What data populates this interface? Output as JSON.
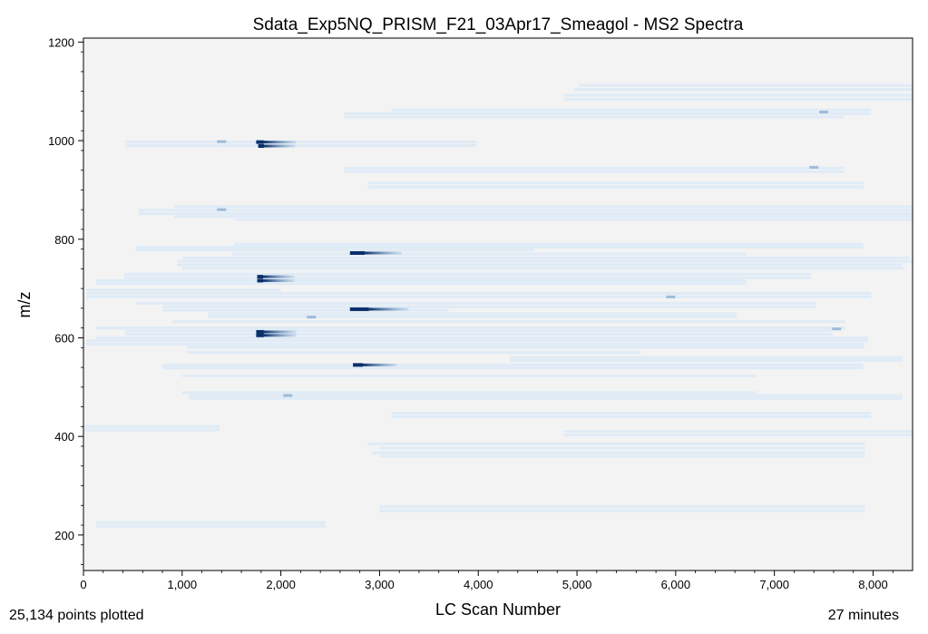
{
  "chart_data": {
    "type": "scatter",
    "title": "Sdata_Exp5NQ_PRISM_F21_03Apr17_Smeagol - MS2 Spectra",
    "xlabel": "LC Scan Number",
    "ylabel": "m/z",
    "xlim": [
      0,
      8400
    ],
    "ylim": [
      128,
      1208
    ],
    "x_ticks": [
      0,
      1000,
      2000,
      3000,
      4000,
      5000,
      6000,
      7000,
      8000
    ],
    "x_tick_labels": [
      "0",
      "1,000",
      "2,000",
      "3,000",
      "4,000",
      "5,000",
      "6,000",
      "7,000",
      "8,000"
    ],
    "y_ticks": [
      200,
      400,
      600,
      800,
      1000,
      1200
    ],
    "y_tick_labels": [
      "200",
      "400",
      "600",
      "800",
      "1000",
      "1200"
    ],
    "grid": false,
    "background": "#f3f3f3",
    "colormap_low": "#d8e8f7",
    "colormap_high": "#08306b",
    "faint_bands": [
      {
        "mz": 1112,
        "x": [
          5020,
          8400
        ]
      },
      {
        "mz": 1104,
        "x": [
          4970,
          8400
        ]
      },
      {
        "mz": 1092,
        "x": [
          4870,
          8400
        ]
      },
      {
        "mz": 1084,
        "x": [
          4870,
          8400
        ]
      },
      {
        "mz": 1062,
        "x": [
          3120,
          7980
        ]
      },
      {
        "mz": 1055,
        "x": [
          2640,
          7980
        ]
      },
      {
        "mz": 1048,
        "x": [
          2640,
          7700
        ]
      },
      {
        "mz": 997,
        "x": [
          420,
          3980
        ]
      },
      {
        "mz": 990,
        "x": [
          420,
          3980
        ]
      },
      {
        "mz": 944,
        "x": [
          2640,
          7700
        ]
      },
      {
        "mz": 937,
        "x": [
          2640,
          7700
        ]
      },
      {
        "mz": 914,
        "x": [
          2880,
          7900
        ]
      },
      {
        "mz": 906,
        "x": [
          2880,
          7900
        ]
      },
      {
        "mz": 866,
        "x": [
          920,
          8400
        ]
      },
      {
        "mz": 859,
        "x": [
          560,
          8400
        ]
      },
      {
        "mz": 852,
        "x": [
          560,
          8400
        ]
      },
      {
        "mz": 846,
        "x": [
          920,
          8400
        ]
      },
      {
        "mz": 840,
        "x": [
          1540,
          8400
        ]
      },
      {
        "mz": 790,
        "x": [
          1530,
          7900
        ]
      },
      {
        "mz": 784,
        "x": [
          530,
          7900
        ]
      },
      {
        "mz": 778,
        "x": [
          530,
          4570
        ]
      },
      {
        "mz": 770,
        "x": [
          1500,
          6720
        ]
      },
      {
        "mz": 762,
        "x": [
          1000,
          8370
        ]
      },
      {
        "mz": 755,
        "x": [
          950,
          8400
        ]
      },
      {
        "mz": 748,
        "x": [
          950,
          8300
        ]
      },
      {
        "mz": 741,
        "x": [
          1000,
          8320
        ]
      },
      {
        "mz": 729,
        "x": [
          410,
          7370
        ]
      },
      {
        "mz": 722,
        "x": [
          410,
          7370
        ]
      },
      {
        "mz": 716,
        "x": [
          130,
          6720
        ]
      },
      {
        "mz": 710,
        "x": [
          130,
          6720
        ]
      },
      {
        "mz": 697,
        "x": [
          30,
          2000
        ]
      },
      {
        "mz": 690,
        "x": [
          30,
          7980
        ]
      },
      {
        "mz": 683,
        "x": [
          30,
          7980
        ]
      },
      {
        "mz": 670,
        "x": [
          530,
          7420
        ]
      },
      {
        "mz": 663,
        "x": [
          800,
          7420
        ]
      },
      {
        "mz": 656,
        "x": [
          800,
          3700
        ]
      },
      {
        "mz": 649,
        "x": [
          1260,
          6620
        ]
      },
      {
        "mz": 643,
        "x": [
          1260,
          6620
        ]
      },
      {
        "mz": 633,
        "x": [
          900,
          7720
        ]
      },
      {
        "mz": 620,
        "x": [
          130,
          7720
        ]
      },
      {
        "mz": 614,
        "x": [
          420,
          7590
        ]
      },
      {
        "mz": 607,
        "x": [
          420,
          7590
        ]
      },
      {
        "mz": 600,
        "x": [
          130,
          7950
        ]
      },
      {
        "mz": 594,
        "x": [
          30,
          7950
        ]
      },
      {
        "mz": 587,
        "x": [
          30,
          7910
        ]
      },
      {
        "mz": 581,
        "x": [
          1050,
          7910
        ]
      },
      {
        "mz": 570,
        "x": [
          1050,
          5640
        ]
      },
      {
        "mz": 560,
        "x": [
          4320,
          8300
        ]
      },
      {
        "mz": 554,
        "x": [
          4320,
          8300
        ]
      },
      {
        "mz": 545,
        "x": [
          800,
          7900
        ]
      },
      {
        "mz": 539,
        "x": [
          800,
          7900
        ]
      },
      {
        "mz": 523,
        "x": [
          1000,
          6820
        ]
      },
      {
        "mz": 489,
        "x": [
          1000,
          6820
        ]
      },
      {
        "mz": 483,
        "x": [
          1070,
          8300
        ]
      },
      {
        "mz": 477,
        "x": [
          1070,
          8300
        ]
      },
      {
        "mz": 447,
        "x": [
          3120,
          7980
        ]
      },
      {
        "mz": 440,
        "x": [
          3120,
          7980
        ]
      },
      {
        "mz": 420,
        "x": [
          0,
          1380
        ]
      },
      {
        "mz": 413,
        "x": [
          0,
          1380
        ]
      },
      {
        "mz": 410,
        "x": [
          4870,
          8400
        ]
      },
      {
        "mz": 403,
        "x": [
          4870,
          8400
        ]
      },
      {
        "mz": 385,
        "x": [
          2880,
          7920
        ]
      },
      {
        "mz": 376,
        "x": [
          3000,
          7920
        ]
      },
      {
        "mz": 367,
        "x": [
          2920,
          7920
        ]
      },
      {
        "mz": 360,
        "x": [
          3000,
          7920
        ]
      },
      {
        "mz": 257,
        "x": [
          3000,
          7920
        ]
      },
      {
        "mz": 249,
        "x": [
          3000,
          7920
        ]
      },
      {
        "mz": 225,
        "x": [
          130,
          2450
        ]
      },
      {
        "mz": 218,
        "x": [
          130,
          2450
        ]
      }
    ],
    "intense_clusters": [
      {
        "mz": 997,
        "x": [
          1750,
          1880
        ]
      },
      {
        "mz": 989,
        "x": [
          1770,
          1870
        ]
      },
      {
        "mz": 724,
        "x": [
          1760,
          1860
        ]
      },
      {
        "mz": 716,
        "x": [
          1760,
          1860
        ]
      },
      {
        "mz": 772,
        "x": [
          2700,
          2950
        ]
      },
      {
        "mz": 658,
        "x": [
          2700,
          3020
        ]
      },
      {
        "mz": 612,
        "x": [
          1750,
          1880
        ]
      },
      {
        "mz": 605,
        "x": [
          1750,
          1880
        ]
      },
      {
        "mz": 545,
        "x": [
          2730,
          2900
        ]
      }
    ],
    "faint_spots": [
      {
        "x": 1400,
        "mz": 998
      },
      {
        "x": 1400,
        "mz": 860
      },
      {
        "x": 2310,
        "mz": 642
      },
      {
        "x": 7630,
        "mz": 618
      },
      {
        "x": 7500,
        "mz": 1058
      },
      {
        "x": 7400,
        "mz": 946
      },
      {
        "x": 5950,
        "mz": 683
      },
      {
        "x": 2070,
        "mz": 483
      }
    ]
  },
  "annotations": {
    "points_plotted": "25,134 points plotted",
    "duration": "27 minutes"
  }
}
